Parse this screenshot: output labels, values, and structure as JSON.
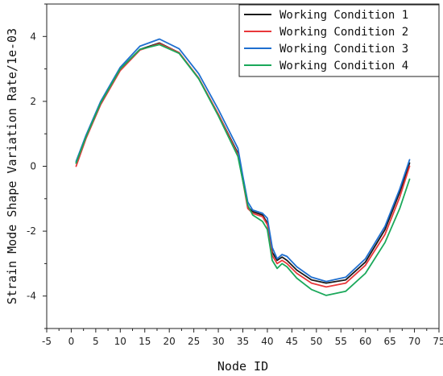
{
  "chart_data": {
    "type": "line",
    "xlabel": "Node ID",
    "ylabel": "Strain Mode Shape Variation Rate/1e-03",
    "xlim": [
      -5,
      75
    ],
    "ylim": [
      -5,
      5
    ],
    "xticks": [
      -5,
      0,
      5,
      10,
      15,
      20,
      25,
      30,
      35,
      40,
      45,
      50,
      55,
      60,
      65,
      70,
      75
    ],
    "yticks": [
      -4,
      -2,
      0,
      2,
      4
    ],
    "legend_position": "top-right",
    "grid": false,
    "series": [
      {
        "name": "Working Condition 1",
        "color": "#1a1a1a",
        "x": [
          1,
          3,
          6,
          10,
          14,
          18,
          22,
          26,
          30,
          34,
          35,
          36,
          37,
          38,
          39,
          40,
          41,
          42,
          43,
          44,
          46,
          49,
          52,
          56,
          60,
          64,
          67,
          69
        ],
        "y": [
          0.1,
          0.9,
          1.95,
          3.0,
          3.6,
          3.8,
          3.5,
          2.7,
          1.6,
          0.4,
          -0.4,
          -1.25,
          -1.4,
          -1.45,
          -1.5,
          -1.75,
          -2.65,
          -2.9,
          -2.8,
          -2.9,
          -3.2,
          -3.5,
          -3.6,
          -3.5,
          -2.95,
          -1.95,
          -0.8,
          0.1
        ]
      },
      {
        "name": "Working Condition 2",
        "color": "#e8373a",
        "x": [
          1,
          3,
          6,
          10,
          14,
          18,
          22,
          26,
          30,
          34,
          35,
          36,
          37,
          38,
          39,
          40,
          41,
          42,
          43,
          44,
          46,
          49,
          52,
          56,
          60,
          64,
          67,
          69
        ],
        "y": [
          0.0,
          0.85,
          1.9,
          2.95,
          3.58,
          3.78,
          3.5,
          2.72,
          1.6,
          0.35,
          -0.45,
          -1.3,
          -1.45,
          -1.5,
          -1.55,
          -1.8,
          -2.75,
          -3.0,
          -2.9,
          -3.0,
          -3.3,
          -3.6,
          -3.72,
          -3.6,
          -3.05,
          -2.1,
          -0.95,
          0.0
        ]
      },
      {
        "name": "Working Condition 3",
        "color": "#1f6fd0",
        "x": [
          1,
          3,
          6,
          10,
          14,
          18,
          22,
          26,
          30,
          34,
          35,
          36,
          37,
          38,
          39,
          40,
          41,
          42,
          43,
          44,
          46,
          49,
          52,
          56,
          60,
          64,
          67,
          69
        ],
        "y": [
          0.15,
          0.95,
          2.0,
          3.05,
          3.7,
          3.92,
          3.62,
          2.85,
          1.75,
          0.55,
          -0.3,
          -1.1,
          -1.35,
          -1.4,
          -1.45,
          -1.6,
          -2.5,
          -2.85,
          -2.72,
          -2.78,
          -3.1,
          -3.42,
          -3.55,
          -3.42,
          -2.85,
          -1.85,
          -0.7,
          0.2
        ]
      },
      {
        "name": "Working Condition 4",
        "color": "#1aa85a",
        "x": [
          1,
          3,
          6,
          10,
          14,
          18,
          22,
          26,
          30,
          34,
          35,
          36,
          37,
          38,
          39,
          40,
          41,
          42,
          43,
          44,
          46,
          49,
          52,
          56,
          60,
          64,
          67,
          69
        ],
        "y": [
          0.1,
          0.9,
          1.95,
          3.0,
          3.6,
          3.75,
          3.48,
          2.7,
          1.55,
          0.3,
          -0.45,
          -1.2,
          -1.5,
          -1.6,
          -1.7,
          -1.95,
          -2.9,
          -3.15,
          -3.0,
          -3.1,
          -3.45,
          -3.8,
          -3.98,
          -3.85,
          -3.3,
          -2.35,
          -1.3,
          -0.4
        ]
      }
    ]
  }
}
